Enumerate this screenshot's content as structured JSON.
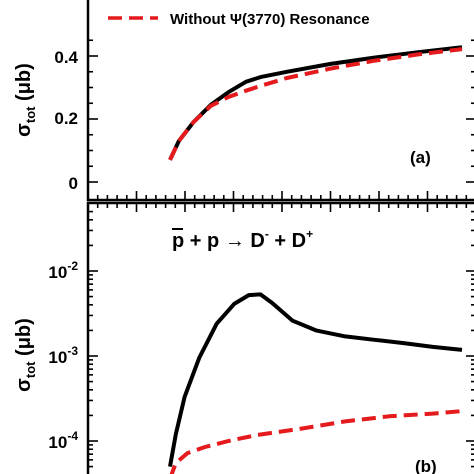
{
  "chart_data": [
    {
      "panel": "a",
      "type": "line",
      "panel_label": "(a)",
      "ylabel": "σ_tot (μb)",
      "ylim": [
        -0.06,
        0.5
      ],
      "yticks": [
        "0",
        "0.2",
        "0.4"
      ],
      "legend": {
        "placement": "top-center",
        "items": [
          "Without Ψ(3770) Resonance"
        ]
      },
      "series": [
        {
          "color": "#000000",
          "dash": "solid",
          "points": [
            [
              0.0,
              0.07
            ],
            [
              0.03,
              0.13
            ],
            [
              0.08,
              0.19
            ],
            [
              0.14,
              0.245
            ],
            [
              0.2,
              0.285
            ],
            [
              0.26,
              0.318
            ],
            [
              0.31,
              0.333
            ],
            [
              0.4,
              0.35
            ],
            [
              0.55,
              0.375
            ],
            [
              0.7,
              0.395
            ],
            [
              0.85,
              0.412
            ],
            [
              1.0,
              0.428
            ]
          ]
        },
        {
          "name": "Without Ψ(3770) Resonance",
          "color": "#e41a1c",
          "dash": "dashed",
          "points": [
            [
              0.0,
              0.07
            ],
            [
              0.03,
              0.13
            ],
            [
              0.08,
              0.19
            ],
            [
              0.14,
              0.242
            ],
            [
              0.2,
              0.27
            ],
            [
              0.26,
              0.29
            ],
            [
              0.31,
              0.305
            ],
            [
              0.4,
              0.33
            ],
            [
              0.55,
              0.36
            ],
            [
              0.7,
              0.385
            ],
            [
              0.85,
              0.405
            ],
            [
              1.0,
              0.422
            ]
          ]
        }
      ]
    },
    {
      "panel": "b",
      "type": "line",
      "yscale": "log",
      "panel_label": "(b)",
      "reaction": {
        "pbar": "p",
        "p": "p",
        "dminus": "D",
        "dplus": "D",
        "plus": "+",
        "arrow": "→",
        "minus_sup": "-",
        "plus_sup": "+"
      },
      "ylabel": "σ_tot (μb)",
      "ylim": [
        3.5e-05,
        0.07
      ],
      "yticks": [
        "10^-2",
        "10^-3",
        "10^-4"
      ],
      "series": [
        {
          "color": "#000000",
          "dash": "solid",
          "points": [
            [
              0.0,
              5e-05
            ],
            [
              0.02,
              0.00012
            ],
            [
              0.05,
              0.00033
            ],
            [
              0.1,
              0.00095
            ],
            [
              0.16,
              0.0024
            ],
            [
              0.22,
              0.0041
            ],
            [
              0.27,
              0.0052
            ],
            [
              0.31,
              0.0053
            ],
            [
              0.35,
              0.0042
            ],
            [
              0.42,
              0.0026
            ],
            [
              0.5,
              0.002
            ],
            [
              0.6,
              0.0017
            ],
            [
              0.7,
              0.00155
            ],
            [
              0.8,
              0.00142
            ],
            [
              0.9,
              0.00128
            ],
            [
              1.0,
              0.00118
            ]
          ]
        },
        {
          "color": "#e41a1c",
          "dash": "dashed",
          "points": [
            [
              0.0,
              3.6e-05
            ],
            [
              0.02,
              5.5e-05
            ],
            [
              0.06,
              7.2e-05
            ],
            [
              0.12,
              8.5e-05
            ],
            [
              0.2,
              0.0001
            ],
            [
              0.3,
              0.000118
            ],
            [
              0.45,
              0.00014
            ],
            [
              0.6,
              0.00017
            ],
            [
              0.75,
              0.000195
            ],
            [
              0.9,
              0.00021
            ],
            [
              1.0,
              0.000225
            ]
          ]
        }
      ]
    }
  ]
}
